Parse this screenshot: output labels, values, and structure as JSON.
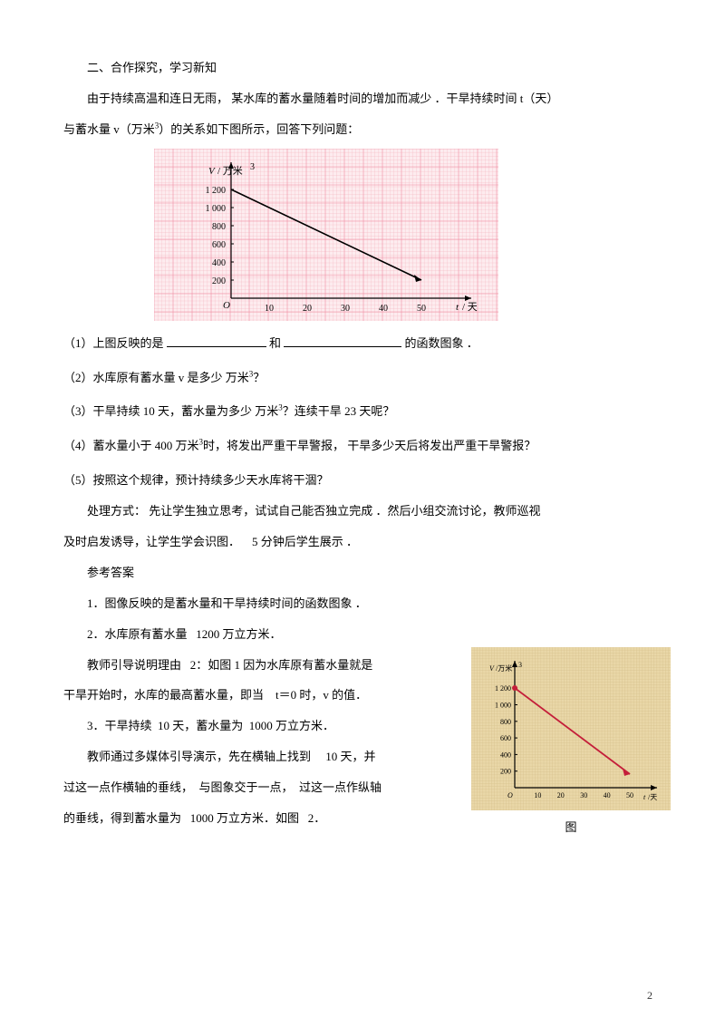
{
  "section_title": "二、合作探究，学习新知",
  "intro_line1_a": "由于持续高温和连日无雨，",
  "intro_line1_b": "某水库的蓄水量随着时间的增加而减少",
  "intro_line1_c": "．干旱持续时间",
  "intro_t": "t（天）",
  "intro_line2_a": "与蓄水量",
  "intro_v": "v（万米",
  "intro_v_sup": "3",
  "intro_line2_b": "）的关系如下图所示，回答下列问题：",
  "q1_a": "（1）上图反映的是",
  "q1_mid": "和",
  "q1_b": "的函数图象 ．",
  "q2_a": "（2）水库原有蓄水量",
  "q2_b": "v 是多少 万米",
  "q2_sup": "3",
  "q2_c": "？",
  "q3_a": "（3）干旱持续",
  "q3_b": "10 天，蓄水量为多少",
  "q3_c": "万米",
  "q3_sup": "3",
  "q3_d": "？连续干旱",
  "q3_e": "23 天呢？",
  "q4_a": "（4）蓄水量小于",
  "q4_b": "400 万米",
  "q4_sup": "3",
  "q4_c": "时，将发出严重干旱警报，",
  "q4_d": "干旱多少天后将发出严重干旱警报？",
  "q5": "（5）按照这个规律，预计持续多少天水库将干涸？",
  "method_a": "处理方式： 先让学生独立思考，试试自己能否独立完成 ．然后小组交流讨论，教师巡视",
  "method_b": "及时启发诱导，让学生学会识图．",
  "method_c": "5 分钟后学生展示 ．",
  "answers_title": "参考答案",
  "a1": "1．图像反映的是蓄水量和干旱持续时间的函数图象 ．",
  "a2_a": "2．水库原有蓄水量",
  "a2_b": "1200 万立方米．",
  "a2_explain_a": "教师引导说明理由",
  "a2_explain_b": "2：如图 1 因为水库原有蓄水量就是",
  "a2_explain_c": "干旱开始时，水库的最高蓄水量，即当",
  "a2_explain_d": "t＝0 时，v 的值．",
  "a3_a": "3．干旱持续",
  "a3_b": "10 天，蓄水量为",
  "a3_c": "1000 万立方米．",
  "a3_explain_a": "教师通过多媒体引导演示，先在横轴上找到",
  "a3_explain_b": "10 天，并",
  "a3_explain_c": "过这一点作横轴的垂线，",
  "a3_explain_d": "与图象交于一点，",
  "a3_explain_e": "过这一点作纵轴",
  "a3_explain_f": "的垂线，得到蓄水量为",
  "a3_explain_g": "1000 万立方米．如图",
  "a3_explain_h": "2．",
  "page_number": "2",
  "chart1": {
    "type": "line",
    "bg_color": "#fdecef",
    "grid_color": "#f5b5c0",
    "major_grid_color": "#f08aa0",
    "axis_color": "#000000",
    "line_color": "#000000",
    "y_label": "V / 万米",
    "y_label_sup": "3",
    "x_label": "t / 天",
    "x_ticks": [
      10,
      20,
      30,
      40,
      50
    ],
    "y_ticks": [
      200,
      400,
      600,
      800,
      1000,
      1200
    ],
    "y_tick_labels": [
      "200",
      "400",
      "600",
      "800",
      "1 000",
      "1 200"
    ],
    "data": [
      [
        0,
        1200
      ],
      [
        50,
        200
      ]
    ],
    "xlim": [
      0,
      62
    ],
    "ylim": [
      0,
      1400
    ]
  },
  "chart2": {
    "type": "line",
    "bg_color": "#e9d7a8",
    "grid_color": "#d4bd88",
    "axis_color": "#000000",
    "line_color": "#c41e3a",
    "marker_color": "#c41e3a",
    "y_label": "V/万米",
    "y_label_sup": "3",
    "x_label": "t/天",
    "x_ticks": [
      10,
      20,
      30,
      40,
      50
    ],
    "y_ticks": [
      200,
      400,
      600,
      800,
      1000,
      1200
    ],
    "y_tick_labels": [
      "200",
      "400",
      "600",
      "800",
      "1 000",
      "1 200"
    ],
    "data": [
      [
        0,
        1200
      ],
      [
        50,
        200
      ]
    ],
    "markers": [
      [
        0,
        1200
      ]
    ],
    "xlim": [
      0,
      62
    ],
    "ylim": [
      0,
      1400
    ],
    "caption": "图"
  }
}
